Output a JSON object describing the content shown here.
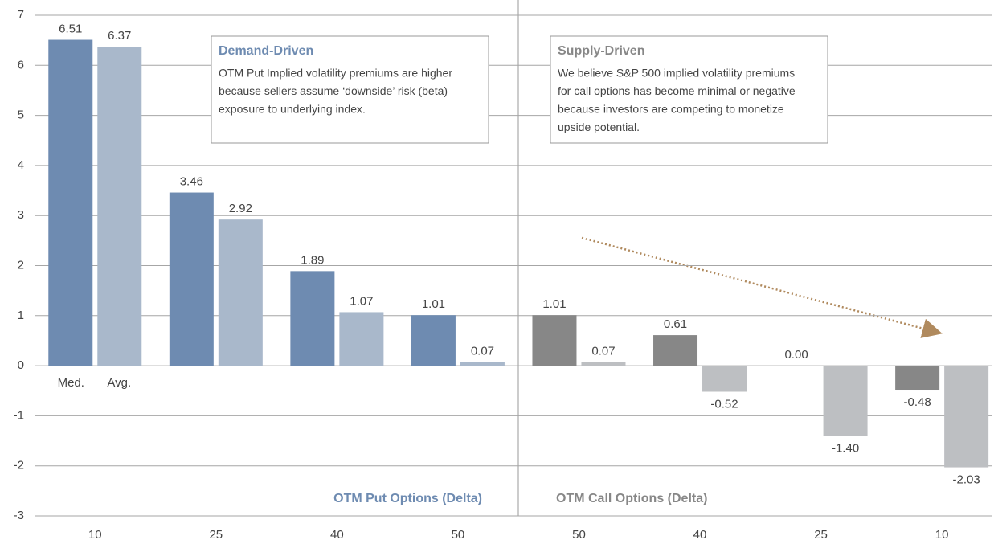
{
  "chart_data": {
    "type": "bar",
    "categories": [
      "10",
      "25",
      "40",
      "50",
      "50",
      "40",
      "25",
      "10"
    ],
    "series": [
      {
        "name": "Med.",
        "colors": [
          "#6e8bb1",
          "#6e8bb1",
          "#6e8bb1",
          "#6e8bb1",
          "#878787",
          "#878787",
          "#878787",
          "#878787"
        ],
        "values": [
          6.51,
          3.46,
          1.89,
          1.01,
          1.01,
          0.61,
          0,
          -0.48
        ],
        "value_labels": [
          "6.51",
          "3.46",
          "1.89",
          "1.01",
          "1.01",
          "0.61",
          "0.00",
          "-0.48"
        ]
      },
      {
        "name": "Avg.",
        "colors": [
          "#a9b8cb",
          "#a9b8cb",
          "#a9b8cb",
          "#a9b8cb",
          "#bdbfc2",
          "#bdbfc2",
          "#bdbfc2",
          "#bdbfc2"
        ],
        "values": [
          6.37,
          2.92,
          1.07,
          0.07,
          0.07,
          -0.52,
          -1.4,
          -2.03
        ],
        "value_labels": [
          "6.37",
          "2.92",
          "1.07",
          "0.07",
          "0.07",
          "-0.52",
          "-1.40",
          "-2.03"
        ]
      }
    ],
    "ylim": [
      -3,
      7
    ],
    "yticks": [
      -3,
      -2,
      -1,
      0,
      1,
      2,
      3,
      4,
      5,
      6,
      7
    ],
    "grid": true,
    "annotations": [
      {
        "title": "Demand-Driven",
        "color": "#6e8bb1",
        "lines": [
          "OTM Put Implied volatility premiums are higher",
          "because sellers assume ‘downside’ risk (beta)",
          "exposure to underlying index."
        ]
      },
      {
        "title": "Supply-Driven",
        "color": "#878787",
        "lines": [
          "We believe S&P 500 implied volatility premiums",
          "for call options has become minimal or negative",
          "because investors are competing to monetize",
          "upside potential."
        ]
      }
    ],
    "section_labels": [
      {
        "text": "OTM Put Options (Delta)",
        "color": "#6e8bb1"
      },
      {
        "text": "OTM Call Options (Delta)",
        "color": "#878787"
      }
    ]
  }
}
